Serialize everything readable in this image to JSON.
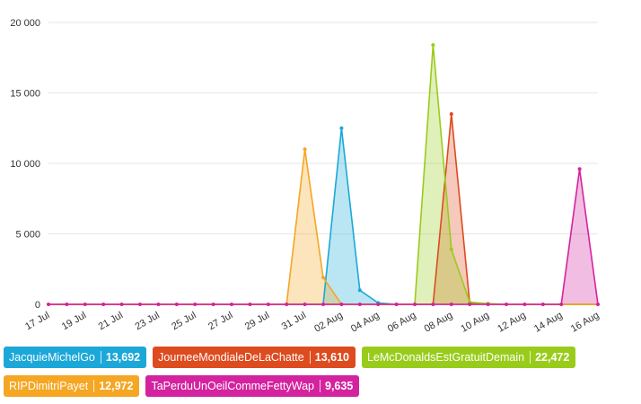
{
  "chart_data": {
    "type": "area",
    "x": [
      "17 Jul",
      "18 Jul",
      "19 Jul",
      "20 Jul",
      "21 Jul",
      "22 Jul",
      "23 Jul",
      "24 Jul",
      "25 Jul",
      "26 Jul",
      "27 Jul",
      "28 Jul",
      "29 Jul",
      "30 Jul",
      "31 Jul",
      "01 Aug",
      "02 Aug",
      "03 Aug",
      "04 Aug",
      "05 Aug",
      "06 Aug",
      "07 Aug",
      "08 Aug",
      "09 Aug",
      "10 Aug",
      "11 Aug",
      "12 Aug",
      "13 Aug",
      "14 Aug",
      "15 Aug",
      "16 Aug"
    ],
    "x_tick_labels": [
      "17 Jul",
      "19 Jul",
      "21 Jul",
      "23 Jul",
      "25 Jul",
      "27 Jul",
      "29 Jul",
      "31 Jul",
      "02 Aug",
      "04 Aug",
      "06 Aug",
      "08 Aug",
      "10 Aug",
      "12 Aug",
      "14 Aug",
      "16 Aug"
    ],
    "y_ticks": [
      "0",
      "5 000",
      "10 000",
      "15 000",
      "20 000"
    ],
    "ylim": [
      0,
      20000
    ],
    "grid": true,
    "legend_position": "bottom",
    "series": [
      {
        "name": "JacquieMichelGo",
        "total": "13,692",
        "color": "#1ba8d8",
        "values": [
          0,
          0,
          0,
          0,
          0,
          0,
          0,
          0,
          0,
          0,
          0,
          0,
          0,
          0,
          0,
          0,
          12500,
          1000,
          100,
          0,
          0,
          0,
          0,
          0,
          0,
          0,
          0,
          0,
          0,
          0,
          0
        ]
      },
      {
        "name": "JourneeMondialeDeLaChatte",
        "total": "13,610",
        "color": "#dd4b1f",
        "values": [
          0,
          0,
          0,
          0,
          0,
          0,
          0,
          0,
          0,
          0,
          0,
          0,
          0,
          0,
          0,
          0,
          0,
          0,
          0,
          0,
          0,
          0,
          13500,
          100,
          0,
          0,
          0,
          0,
          0,
          0,
          0
        ]
      },
      {
        "name": "LeMcDonaldsEstGratuitDemain",
        "total": "22,472",
        "color": "#99cc1a",
        "values": [
          0,
          0,
          0,
          0,
          0,
          0,
          0,
          0,
          0,
          0,
          0,
          0,
          0,
          0,
          0,
          0,
          0,
          0,
          0,
          0,
          0,
          18400,
          3900,
          150,
          50,
          0,
          0,
          0,
          0,
          0,
          0
        ]
      },
      {
        "name": "RIPDimitriPayet",
        "total": "12,972",
        "color": "#f5a623",
        "values": [
          0,
          0,
          0,
          0,
          0,
          0,
          0,
          0,
          0,
          0,
          0,
          0,
          0,
          0,
          11000,
          1900,
          0,
          0,
          0,
          0,
          0,
          0,
          0,
          0,
          0,
          0,
          0,
          0,
          0,
          0,
          0
        ]
      },
      {
        "name": "TaPerduUnOeilCommeFettyWap",
        "total": "9,635",
        "color": "#d4239f",
        "values": [
          0,
          0,
          0,
          0,
          0,
          0,
          0,
          0,
          0,
          0,
          0,
          0,
          0,
          0,
          0,
          0,
          0,
          0,
          0,
          0,
          0,
          0,
          0,
          0,
          0,
          0,
          0,
          0,
          0,
          9600,
          0
        ]
      }
    ]
  },
  "legend_rows": [
    [
      0,
      1,
      2
    ],
    [
      3,
      4
    ]
  ]
}
